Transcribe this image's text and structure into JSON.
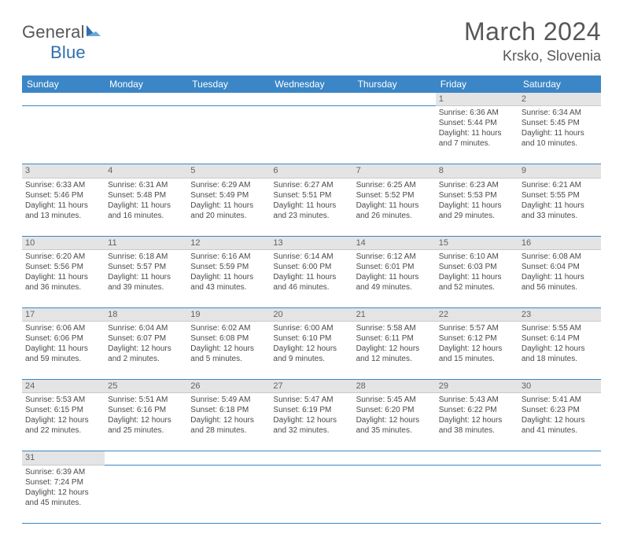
{
  "logo": {
    "general": "General",
    "blue": "Blue"
  },
  "title": "March 2024",
  "location": "Krsko, Slovenia",
  "colors": {
    "header_bg": "#3b86c6",
    "header_text": "#ffffff",
    "daynum_bg": "#e4e4e4",
    "cell_bg_alt": "#f1f1f1",
    "row_divider": "#3b86c6",
    "text_gray": "#55575a",
    "logo_blue": "#2f6fad"
  },
  "weekdays": [
    "Sunday",
    "Monday",
    "Tuesday",
    "Wednesday",
    "Thursday",
    "Friday",
    "Saturday"
  ],
  "weeks": [
    [
      null,
      null,
      null,
      null,
      null,
      {
        "n": "1",
        "sr": "6:36 AM",
        "ss": "5:44 PM",
        "dl": "11 hours and 7 minutes."
      },
      {
        "n": "2",
        "sr": "6:34 AM",
        "ss": "5:45 PM",
        "dl": "11 hours and 10 minutes."
      }
    ],
    [
      {
        "n": "3",
        "sr": "6:33 AM",
        "ss": "5:46 PM",
        "dl": "11 hours and 13 minutes."
      },
      {
        "n": "4",
        "sr": "6:31 AM",
        "ss": "5:48 PM",
        "dl": "11 hours and 16 minutes."
      },
      {
        "n": "5",
        "sr": "6:29 AM",
        "ss": "5:49 PM",
        "dl": "11 hours and 20 minutes."
      },
      {
        "n": "6",
        "sr": "6:27 AM",
        "ss": "5:51 PM",
        "dl": "11 hours and 23 minutes."
      },
      {
        "n": "7",
        "sr": "6:25 AM",
        "ss": "5:52 PM",
        "dl": "11 hours and 26 minutes."
      },
      {
        "n": "8",
        "sr": "6:23 AM",
        "ss": "5:53 PM",
        "dl": "11 hours and 29 minutes."
      },
      {
        "n": "9",
        "sr": "6:21 AM",
        "ss": "5:55 PM",
        "dl": "11 hours and 33 minutes."
      }
    ],
    [
      {
        "n": "10",
        "sr": "6:20 AM",
        "ss": "5:56 PM",
        "dl": "11 hours and 36 minutes."
      },
      {
        "n": "11",
        "sr": "6:18 AM",
        "ss": "5:57 PM",
        "dl": "11 hours and 39 minutes."
      },
      {
        "n": "12",
        "sr": "6:16 AM",
        "ss": "5:59 PM",
        "dl": "11 hours and 43 minutes."
      },
      {
        "n": "13",
        "sr": "6:14 AM",
        "ss": "6:00 PM",
        "dl": "11 hours and 46 minutes."
      },
      {
        "n": "14",
        "sr": "6:12 AM",
        "ss": "6:01 PM",
        "dl": "11 hours and 49 minutes."
      },
      {
        "n": "15",
        "sr": "6:10 AM",
        "ss": "6:03 PM",
        "dl": "11 hours and 52 minutes."
      },
      {
        "n": "16",
        "sr": "6:08 AM",
        "ss": "6:04 PM",
        "dl": "11 hours and 56 minutes."
      }
    ],
    [
      {
        "n": "17",
        "sr": "6:06 AM",
        "ss": "6:06 PM",
        "dl": "11 hours and 59 minutes."
      },
      {
        "n": "18",
        "sr": "6:04 AM",
        "ss": "6:07 PM",
        "dl": "12 hours and 2 minutes."
      },
      {
        "n": "19",
        "sr": "6:02 AM",
        "ss": "6:08 PM",
        "dl": "12 hours and 5 minutes."
      },
      {
        "n": "20",
        "sr": "6:00 AM",
        "ss": "6:10 PM",
        "dl": "12 hours and 9 minutes."
      },
      {
        "n": "21",
        "sr": "5:58 AM",
        "ss": "6:11 PM",
        "dl": "12 hours and 12 minutes."
      },
      {
        "n": "22",
        "sr": "5:57 AM",
        "ss": "6:12 PM",
        "dl": "12 hours and 15 minutes."
      },
      {
        "n": "23",
        "sr": "5:55 AM",
        "ss": "6:14 PM",
        "dl": "12 hours and 18 minutes."
      }
    ],
    [
      {
        "n": "24",
        "sr": "5:53 AM",
        "ss": "6:15 PM",
        "dl": "12 hours and 22 minutes."
      },
      {
        "n": "25",
        "sr": "5:51 AM",
        "ss": "6:16 PM",
        "dl": "12 hours and 25 minutes."
      },
      {
        "n": "26",
        "sr": "5:49 AM",
        "ss": "6:18 PM",
        "dl": "12 hours and 28 minutes."
      },
      {
        "n": "27",
        "sr": "5:47 AM",
        "ss": "6:19 PM",
        "dl": "12 hours and 32 minutes."
      },
      {
        "n": "28",
        "sr": "5:45 AM",
        "ss": "6:20 PM",
        "dl": "12 hours and 35 minutes."
      },
      {
        "n": "29",
        "sr": "5:43 AM",
        "ss": "6:22 PM",
        "dl": "12 hours and 38 minutes."
      },
      {
        "n": "30",
        "sr": "5:41 AM",
        "ss": "6:23 PM",
        "dl": "12 hours and 41 minutes."
      }
    ],
    [
      {
        "n": "31",
        "sr": "6:39 AM",
        "ss": "7:24 PM",
        "dl": "12 hours and 45 minutes."
      },
      null,
      null,
      null,
      null,
      null,
      null
    ]
  ],
  "labels": {
    "sunrise": "Sunrise:",
    "sunset": "Sunset:",
    "daylight": "Daylight:"
  }
}
